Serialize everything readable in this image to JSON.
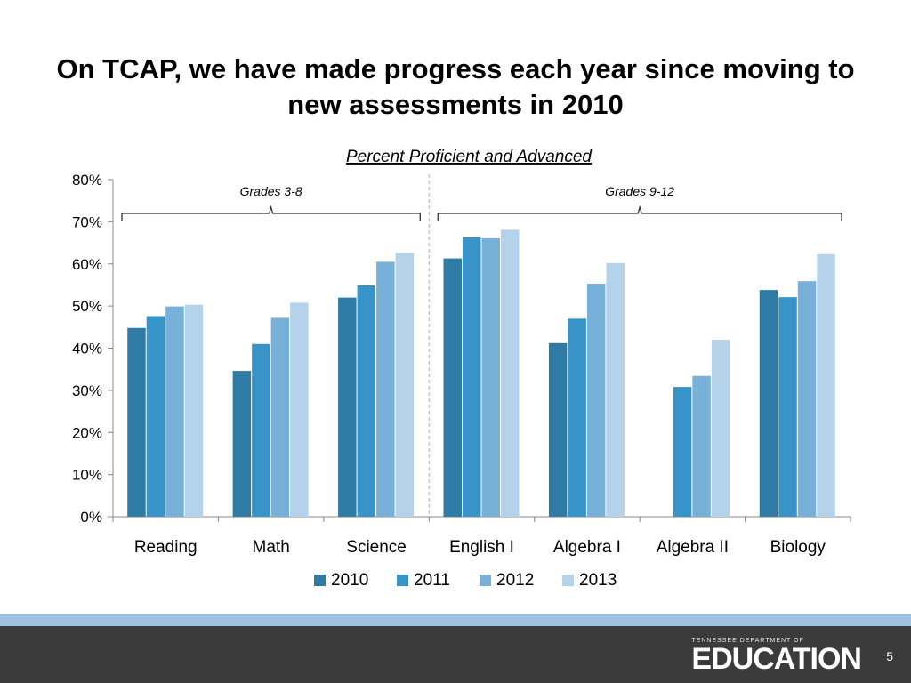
{
  "slide": {
    "title": "On TCAP, we have made progress each year since moving to new assessments in 2010",
    "page_number": "5"
  },
  "footer": {
    "org_line": "TENNESSEE DEPARTMENT OF",
    "org_name": "EDUCATION"
  },
  "chart_data": {
    "type": "bar",
    "title": "Percent Proficient and Advanced",
    "categories": [
      "Reading",
      "Math",
      "Science",
      "English I",
      "Algebra I",
      "Algebra II",
      "Biology"
    ],
    "series": [
      {
        "name": "2010",
        "color": "#2e7ba6",
        "values": [
          0.448,
          0.346,
          0.52,
          0.613,
          0.412,
          null,
          0.538
        ]
      },
      {
        "name": "2011",
        "color": "#3893c8",
        "values": [
          0.476,
          0.41,
          0.549,
          0.663,
          0.47,
          0.308,
          0.521
        ]
      },
      {
        "name": "2012",
        "color": "#77b1da",
        "values": [
          0.499,
          0.472,
          0.605,
          0.661,
          0.553,
          0.334,
          0.559
        ]
      },
      {
        "name": "2013",
        "color": "#b4d2ea",
        "values": [
          0.503,
          0.508,
          0.626,
          0.681,
          0.602,
          0.42,
          0.623
        ]
      }
    ],
    "ylim": [
      0,
      0.8
    ],
    "yticks": [
      0,
      0.1,
      0.2,
      0.3,
      0.4,
      0.5,
      0.6,
      0.7,
      0.8
    ],
    "ytick_labels": [
      "0%",
      "10%",
      "20%",
      "30%",
      "40%",
      "50%",
      "60%",
      "70%",
      "80%"
    ],
    "legend": "bottom",
    "grid": false,
    "groups": [
      {
        "label": "Grades 3-8",
        "categories": [
          "Reading",
          "Math",
          "Science"
        ]
      },
      {
        "label": "Grades 9-12",
        "categories": [
          "English I",
          "Algebra I",
          "Algebra II",
          "Biology"
        ]
      }
    ]
  }
}
